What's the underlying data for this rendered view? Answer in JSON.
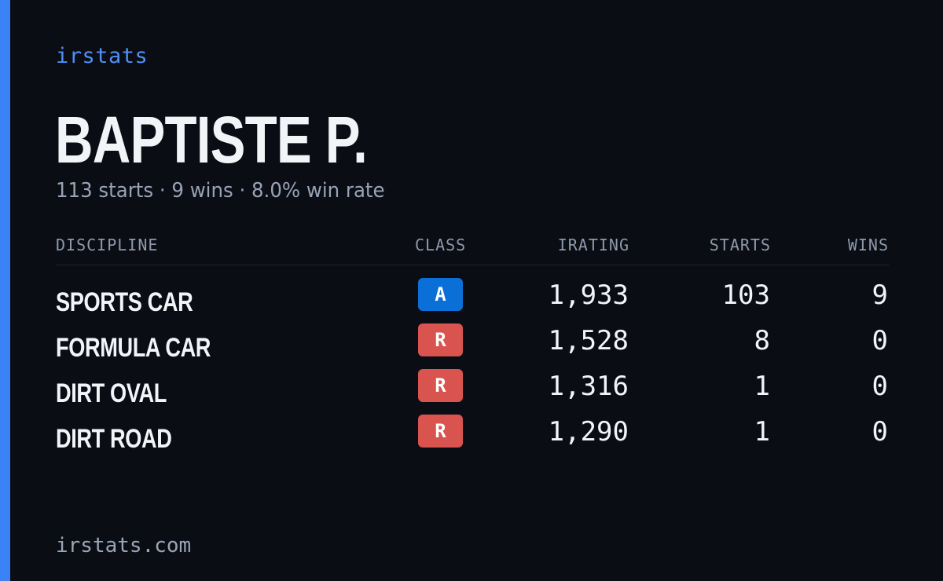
{
  "brand": "irstats",
  "driver": {
    "name": "BAPTISTE P.",
    "summary": "113 starts · 9 wins · 8.0% win rate"
  },
  "table": {
    "headers": {
      "discipline": "DISCIPLINE",
      "class": "CLASS",
      "irating": "IRATING",
      "starts": "STARTS",
      "wins": "WINS"
    },
    "rows": [
      {
        "discipline": "SPORTS CAR",
        "class": "A",
        "class_color": "#0a6fd6",
        "irating": "1,933",
        "starts": "103",
        "wins": "9"
      },
      {
        "discipline": "FORMULA CAR",
        "class": "R",
        "class_color": "#d9534f",
        "irating": "1,528",
        "starts": "8",
        "wins": "0"
      },
      {
        "discipline": "DIRT OVAL",
        "class": "R",
        "class_color": "#d9534f",
        "irating": "1,316",
        "starts": "1",
        "wins": "0"
      },
      {
        "discipline": "DIRT ROAD",
        "class": "R",
        "class_color": "#d9534f",
        "irating": "1,290",
        "starts": "1",
        "wins": "0"
      }
    ]
  },
  "footer": {
    "url": "irstats.com"
  },
  "colors": {
    "background": "#0b0d14",
    "accent": "#3b82f6",
    "brand_text": "#4f8ff7",
    "class_a": "#0a6fd6",
    "class_r": "#d9534f"
  }
}
